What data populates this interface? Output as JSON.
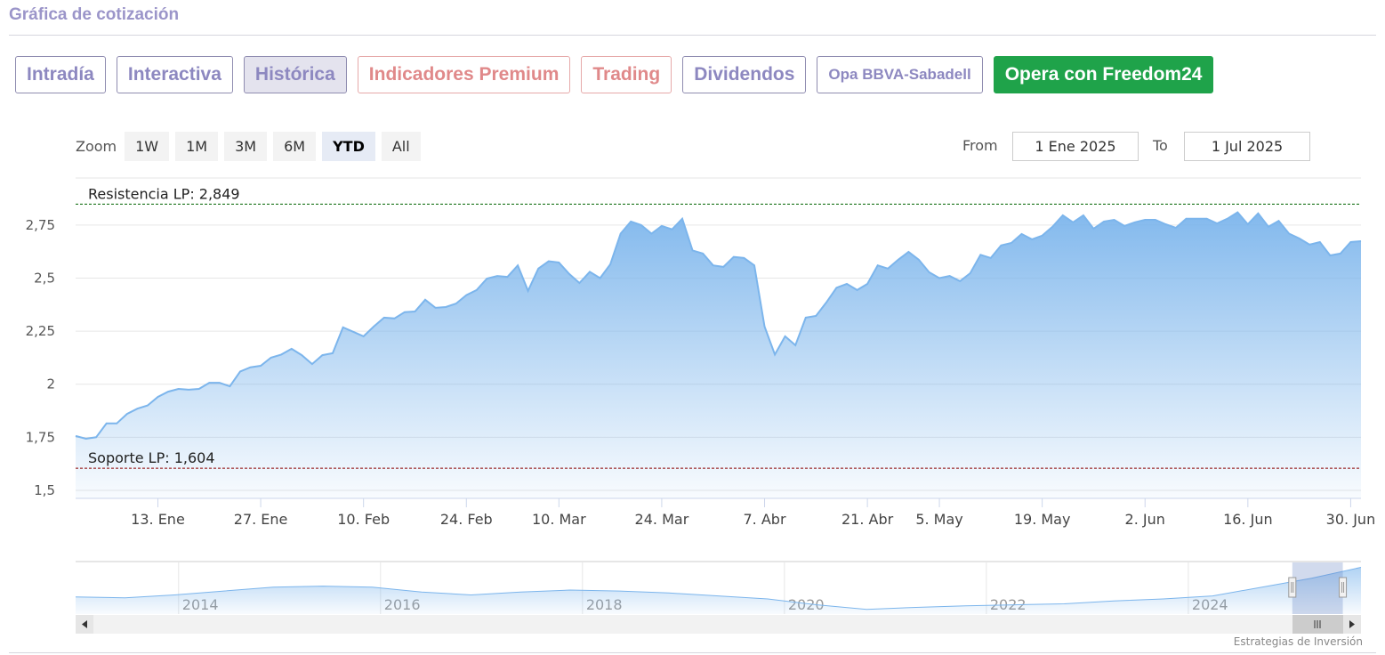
{
  "header": {
    "title": "Gráfica de cotización"
  },
  "tabs": [
    "Intradía",
    "Interactiva",
    "Histórica",
    "Indicadores Premium",
    "Trading",
    "Dividendos",
    "Opa BBVA-Sabadell",
    "Opera con Freedom24"
  ],
  "zoom": {
    "label": "Zoom",
    "buttons": [
      "1W",
      "1M",
      "3M",
      "6M",
      "YTD",
      "All"
    ]
  },
  "range_inputs": {
    "from_label": "From",
    "from": "1 Ene 2025",
    "to_label": "To",
    "to": "1 Jul 2025"
  },
  "chart_data": {
    "type": "area",
    "categories": [
      null,
      null,
      null,
      null,
      null,
      null,
      null,
      null,
      "13. Ene",
      null,
      null,
      null,
      null,
      null,
      null,
      null,
      null,
      null,
      "27. Ene",
      null,
      null,
      null,
      null,
      null,
      null,
      null,
      null,
      null,
      "10. Feb",
      null,
      null,
      null,
      null,
      null,
      null,
      null,
      null,
      null,
      "24. Feb",
      null,
      null,
      null,
      null,
      null,
      null,
      null,
      null,
      "10. Mar",
      null,
      null,
      null,
      null,
      null,
      null,
      null,
      null,
      null,
      "24. Mar",
      null,
      null,
      null,
      null,
      null,
      null,
      null,
      null,
      null,
      "7. Abr",
      null,
      null,
      null,
      null,
      null,
      null,
      null,
      null,
      null,
      "21. Abr",
      null,
      null,
      null,
      null,
      null,
      null,
      "5. May",
      null,
      null,
      null,
      null,
      null,
      null,
      null,
      null,
      null,
      "19. May",
      null,
      null,
      null,
      null,
      null,
      null,
      null,
      null,
      null,
      "2. Jun",
      null,
      null,
      null,
      null,
      null,
      null,
      null,
      null,
      null,
      "16. Jun",
      null,
      null,
      null,
      null,
      null,
      null,
      null,
      null,
      null,
      "30. Jun",
      null
    ],
    "values": [
      1.756,
      1.743,
      1.75,
      1.815,
      1.815,
      1.86,
      1.885,
      1.9,
      1.94,
      1.965,
      1.978,
      1.974,
      1.978,
      2.007,
      2.007,
      1.99,
      2.06,
      2.08,
      2.087,
      2.125,
      2.14,
      2.167,
      2.137,
      2.095,
      2.137,
      2.146,
      2.268,
      2.247,
      2.226,
      2.272,
      2.314,
      2.31,
      2.34,
      2.343,
      2.398,
      2.36,
      2.364,
      2.38,
      2.42,
      2.444,
      2.498,
      2.51,
      2.506,
      2.56,
      2.44,
      2.545,
      2.58,
      2.574,
      2.52,
      2.477,
      2.53,
      2.5,
      2.565,
      2.71,
      2.767,
      2.75,
      2.71,
      2.746,
      2.73,
      2.78,
      2.63,
      2.616,
      2.56,
      2.553,
      2.6,
      2.595,
      2.56,
      2.272,
      2.14,
      2.226,
      2.184,
      2.314,
      2.322,
      2.385,
      2.455,
      2.473,
      2.444,
      2.473,
      2.56,
      2.545,
      2.587,
      2.624,
      2.587,
      2.528,
      2.5,
      2.51,
      2.486,
      2.523,
      2.61,
      2.595,
      2.654,
      2.666,
      2.708,
      2.683,
      2.7,
      2.742,
      2.796,
      2.763,
      2.796,
      2.733,
      2.767,
      2.775,
      2.746,
      2.763,
      2.775,
      2.775,
      2.754,
      2.737,
      2.78,
      2.78,
      2.78,
      2.758,
      2.78,
      2.81,
      2.754,
      2.805,
      2.742,
      2.77,
      2.71,
      2.687,
      2.658,
      2.67,
      2.607,
      2.616,
      2.67,
      2.674
    ],
    "color": "#7cb5ec",
    "ylim": [
      1.462,
      2.972
    ],
    "yticks": [
      {
        "value": 1.5,
        "label": "1,5"
      },
      {
        "value": 1.75,
        "label": "1,75"
      },
      2,
      {
        "value": 2.25,
        "label": "2,25"
      },
      {
        "value": 2.5,
        "label": "2,5"
      },
      {
        "value": 2.75,
        "label": "2,75"
      }
    ],
    "grid": true,
    "plot_lines": [
      {
        "label": "Resistencia LP: 2,849",
        "value": 2.849,
        "color": "#006400"
      },
      {
        "label": "Soporte LP: 1,604",
        "value": 1.604,
        "color": "#8b0000"
      }
    ],
    "navigator": {
      "values": [
        1.25,
        1.2,
        1.35,
        1.55,
        1.75,
        1.8,
        1.75,
        1.5,
        1.35,
        1.5,
        1.6,
        1.55,
        1.45,
        1.3,
        1.15,
        0.85,
        0.62,
        0.72,
        0.8,
        0.85,
        0.9,
        1.05,
        1.15,
        1.3,
        1.75,
        2.2,
        2.75
      ],
      "xlim": [
        2012.98,
        2025.71
      ],
      "xticks": [
        2014,
        2016,
        2018,
        2020,
        2022,
        2024
      ],
      "ylim": [
        0.38,
        3.0
      ],
      "range": [
        2025.03,
        2025.53
      ]
    }
  },
  "footer": {
    "credit": "Estrategias de Inversión"
  }
}
